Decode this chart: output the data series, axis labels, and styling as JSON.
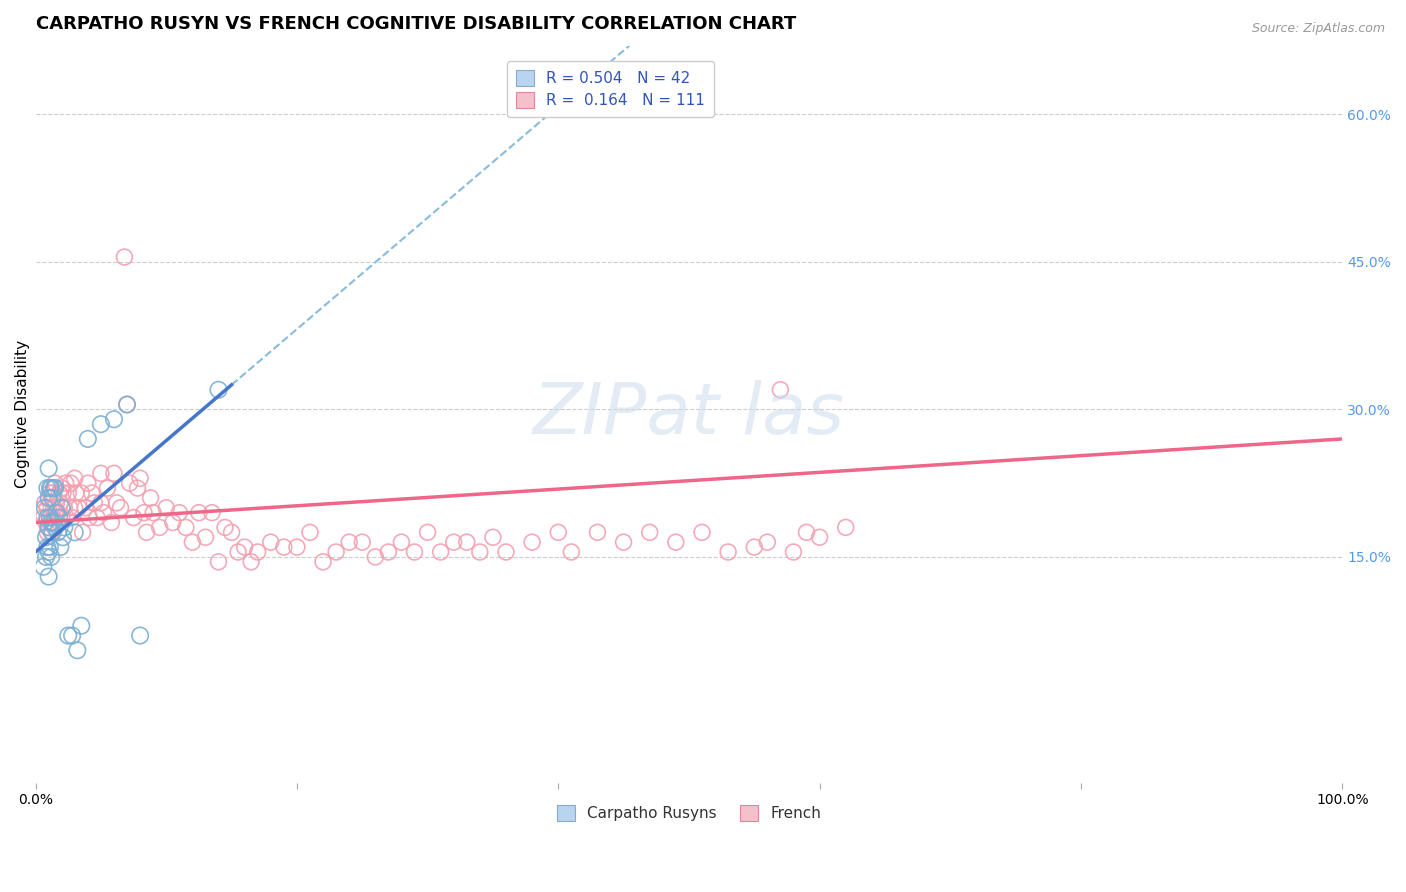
{
  "title": "CARPATHO RUSYN VS FRENCH COGNITIVE DISABILITY CORRELATION CHART",
  "source_text": "Source: ZipAtlas.com",
  "ylabel": "Cognitive Disability",
  "xlim": [
    0.0,
    1.0
  ],
  "ylim": [
    -0.08,
    0.67
  ],
  "blue_R": 0.504,
  "blue_N": 42,
  "pink_R": 0.164,
  "pink_N": 111,
  "blue_dot_color": "#7BAFD4",
  "pink_dot_color": "#F4A0B0",
  "trend_blue_color": "#4477CC",
  "trend_pink_color": "#EE6688",
  "trend_dashed_color": "#88BBDD",
  "background_color": "#FFFFFF",
  "grid_color": "#CCCCCC",
  "right_tick_color": "#5599EE",
  "title_fontsize": 13,
  "label_fontsize": 11,
  "tick_fontsize": 10,
  "legend_R_color": "#3355BB",
  "blue_scatter_x": [
    0.006,
    0.007,
    0.008,
    0.008,
    0.009,
    0.009,
    0.009,
    0.01,
    0.01,
    0.01,
    0.01,
    0.01,
    0.011,
    0.011,
    0.011,
    0.012,
    0.012,
    0.012,
    0.013,
    0.013,
    0.014,
    0.014,
    0.015,
    0.015,
    0.016,
    0.017,
    0.018,
    0.019,
    0.02,
    0.021,
    0.022,
    0.025,
    0.028,
    0.03,
    0.032,
    0.035,
    0.04,
    0.05,
    0.06,
    0.07,
    0.08,
    0.14
  ],
  "blue_scatter_y": [
    0.14,
    0.2,
    0.17,
    0.15,
    0.22,
    0.19,
    0.16,
    0.24,
    0.21,
    0.18,
    0.155,
    0.13,
    0.22,
    0.19,
    0.16,
    0.22,
    0.185,
    0.15,
    0.21,
    0.175,
    0.22,
    0.185,
    0.22,
    0.18,
    0.195,
    0.175,
    0.19,
    0.16,
    0.2,
    0.17,
    0.18,
    0.07,
    0.07,
    0.175,
    0.055,
    0.08,
    0.27,
    0.285,
    0.29,
    0.305,
    0.07,
    0.32
  ],
  "pink_scatter_x": [
    0.005,
    0.006,
    0.007,
    0.008,
    0.009,
    0.009,
    0.01,
    0.01,
    0.011,
    0.011,
    0.012,
    0.012,
    0.013,
    0.013,
    0.014,
    0.015,
    0.015,
    0.016,
    0.017,
    0.018,
    0.019,
    0.02,
    0.02,
    0.021,
    0.022,
    0.023,
    0.025,
    0.026,
    0.027,
    0.028,
    0.03,
    0.03,
    0.031,
    0.033,
    0.035,
    0.036,
    0.038,
    0.04,
    0.041,
    0.043,
    0.045,
    0.047,
    0.05,
    0.05,
    0.052,
    0.055,
    0.058,
    0.06,
    0.062,
    0.065,
    0.068,
    0.07,
    0.072,
    0.075,
    0.078,
    0.08,
    0.083,
    0.085,
    0.088,
    0.09,
    0.095,
    0.1,
    0.105,
    0.11,
    0.115,
    0.12,
    0.125,
    0.13,
    0.135,
    0.14,
    0.145,
    0.15,
    0.155,
    0.16,
    0.165,
    0.17,
    0.18,
    0.19,
    0.2,
    0.21,
    0.22,
    0.23,
    0.24,
    0.25,
    0.26,
    0.27,
    0.28,
    0.29,
    0.3,
    0.31,
    0.32,
    0.33,
    0.34,
    0.35,
    0.36,
    0.38,
    0.4,
    0.41,
    0.43,
    0.45,
    0.47,
    0.49,
    0.51,
    0.53,
    0.55,
    0.56,
    0.57,
    0.58,
    0.59,
    0.6,
    0.62
  ],
  "pink_scatter_y": [
    0.195,
    0.19,
    0.205,
    0.185,
    0.2,
    0.175,
    0.21,
    0.18,
    0.215,
    0.185,
    0.2,
    0.175,
    0.215,
    0.185,
    0.2,
    0.225,
    0.195,
    0.205,
    0.195,
    0.215,
    0.205,
    0.22,
    0.19,
    0.215,
    0.2,
    0.225,
    0.215,
    0.2,
    0.225,
    0.19,
    0.23,
    0.2,
    0.215,
    0.2,
    0.215,
    0.175,
    0.2,
    0.225,
    0.19,
    0.215,
    0.205,
    0.19,
    0.235,
    0.205,
    0.195,
    0.22,
    0.185,
    0.235,
    0.205,
    0.2,
    0.455,
    0.305,
    0.225,
    0.19,
    0.22,
    0.23,
    0.195,
    0.175,
    0.21,
    0.195,
    0.18,
    0.2,
    0.185,
    0.195,
    0.18,
    0.165,
    0.195,
    0.17,
    0.195,
    0.145,
    0.18,
    0.175,
    0.155,
    0.16,
    0.145,
    0.155,
    0.165,
    0.16,
    0.16,
    0.175,
    0.145,
    0.155,
    0.165,
    0.165,
    0.15,
    0.155,
    0.165,
    0.155,
    0.175,
    0.155,
    0.165,
    0.165,
    0.155,
    0.17,
    0.155,
    0.165,
    0.175,
    0.155,
    0.175,
    0.165,
    0.175,
    0.165,
    0.175,
    0.155,
    0.16,
    0.165,
    0.32,
    0.155,
    0.175,
    0.17,
    0.18
  ],
  "blue_trend_x0": 0.0,
  "blue_trend_y0": 0.155,
  "blue_trend_x1": 0.15,
  "blue_trend_y1": 0.325,
  "pink_trend_x0": 0.0,
  "pink_trend_y0": 0.185,
  "pink_trend_x1": 1.0,
  "pink_trend_y1": 0.27
}
